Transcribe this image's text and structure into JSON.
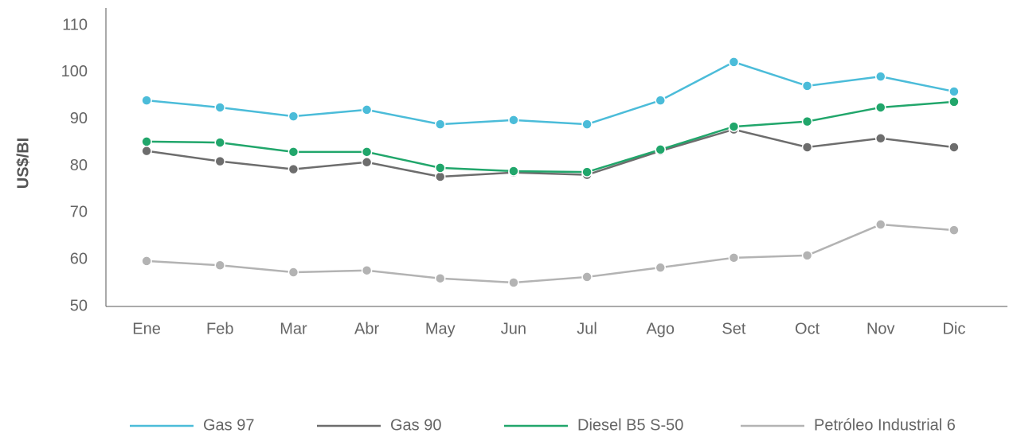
{
  "chart_data": {
    "type": "line",
    "y_label": "US$/BI",
    "categories": [
      "Ene",
      "Feb",
      "Mar",
      "Abr",
      "May",
      "Jun",
      "Jul",
      "Ago",
      "Set",
      "Oct",
      "Nov",
      "Dic"
    ],
    "series": [
      {
        "name": "Gas 97",
        "color": "#4bbcd9",
        "values": [
          94.0,
          92.5,
          90.6,
          92.0,
          88.9,
          89.8,
          88.9,
          94.0,
          102.2,
          97.1,
          99.1,
          95.9
        ]
      },
      {
        "name": "Gas 90",
        "color": "#6d6d6d",
        "values": [
          83.2,
          81.0,
          79.3,
          80.8,
          77.7,
          78.6,
          78.1,
          83.2,
          87.8,
          84.0,
          85.9,
          84.0
        ]
      },
      {
        "name": "Diesel B5 S-50",
        "color": "#21a66b",
        "values": [
          85.2,
          85.0,
          83.0,
          83.0,
          79.6,
          78.9,
          78.7,
          83.5,
          88.4,
          89.5,
          92.5,
          93.7
        ]
      },
      {
        "name": "Petróleo Industrial 6",
        "color": "#b3b3b3",
        "values": [
          59.7,
          58.8,
          57.3,
          57.7,
          56.0,
          55.1,
          56.3,
          58.3,
          60.4,
          60.9,
          67.5,
          66.3
        ]
      }
    ],
    "ylim": [
      50,
      110
    ],
    "yticks": [
      50,
      60,
      70,
      80,
      90,
      100,
      110
    ],
    "grid": false,
    "legend": "bottom"
  }
}
